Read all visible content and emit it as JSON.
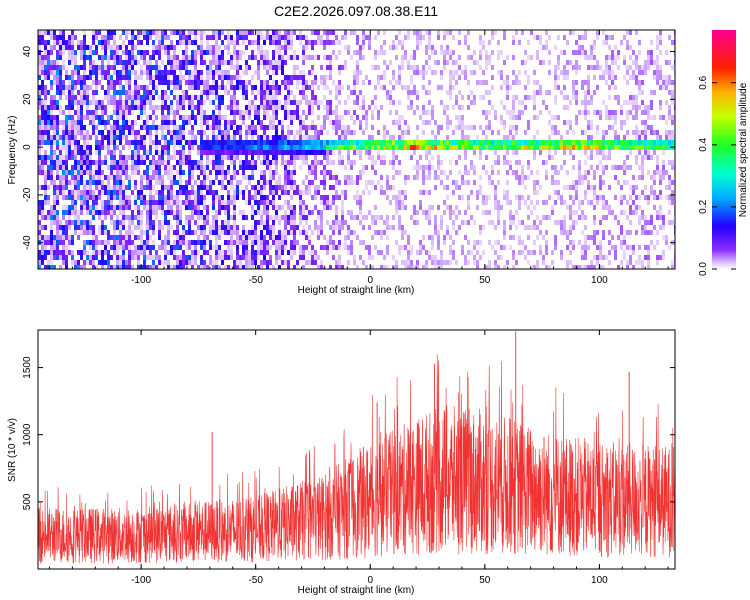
{
  "title": "C2E2.2026.097.08.38.E11",
  "chart_data": [
    {
      "type": "heatmap",
      "xlabel": "Height of straight line (km)",
      "ylabel": "Frequency (Hz)",
      "xlim": [
        -145,
        133
      ],
      "ylim": [
        -51,
        49
      ],
      "xticks": [
        -100,
        -50,
        0,
        50,
        100
      ],
      "yticks": [
        -40,
        -20,
        0,
        20,
        40
      ],
      "colorbar": {
        "label": "Normalized spectral amplitude",
        "range": [
          0,
          0.77
        ],
        "ticks": [
          0.0,
          0.2,
          0.4,
          0.6
        ],
        "tick_labels": [
          "0.0",
          "0.2",
          "0.4",
          "0.6"
        ],
        "colormap": "rainbow (white, purple, blue, cyan, green, yellow, orange, red, magenta)"
      },
      "noise_floor_amplitude": {
        "x": [
          -145,
          -100,
          -60,
          -40,
          -25,
          0,
          50,
          100,
          133
        ],
        "value": [
          0.14,
          0.13,
          0.11,
          0.09,
          0.05,
          0.03,
          0.025,
          0.03,
          0.035
        ]
      },
      "signal_band": {
        "center_hz": 0.5,
        "halfwidth_hz": 2.5,
        "start_km": -75,
        "end_km": 133,
        "peak_amplitude": {
          "x": [
            -75,
            -55,
            -35,
            -22,
            -15,
            0,
            10,
            20,
            50,
            80,
            90,
            100,
            133
          ],
          "value": [
            0.2,
            0.25,
            0.28,
            0.35,
            0.5,
            0.55,
            0.62,
            0.7,
            0.55,
            0.6,
            0.68,
            0.55,
            0.45
          ]
        }
      }
    },
    {
      "type": "line",
      "xlabel": "Height of straight line (km)",
      "ylabel": "SNR (10 * v/v)",
      "xlim": [
        -145,
        133
      ],
      "ylim": [
        0,
        1780
      ],
      "xticks": [
        -100,
        -50,
        0,
        50,
        100
      ],
      "yticks": [
        500,
        1000,
        1500
      ],
      "color": "#f03232",
      "envelope": {
        "x": [
          -145,
          -100,
          -50,
          -20,
          0,
          30,
          50,
          80,
          100,
          133
        ],
        "base": [
          270,
          270,
          320,
          420,
          560,
          720,
          700,
          600,
          560,
          540
        ]
      },
      "spikes": [
        {
          "x": 63.5,
          "y": 1770
        },
        {
          "x": 28,
          "y": 1530
        },
        {
          "x": 113,
          "y": 1470
        },
        {
          "x": -69,
          "y": 1020
        },
        {
          "x": 3,
          "y": 1240
        }
      ]
    }
  ]
}
